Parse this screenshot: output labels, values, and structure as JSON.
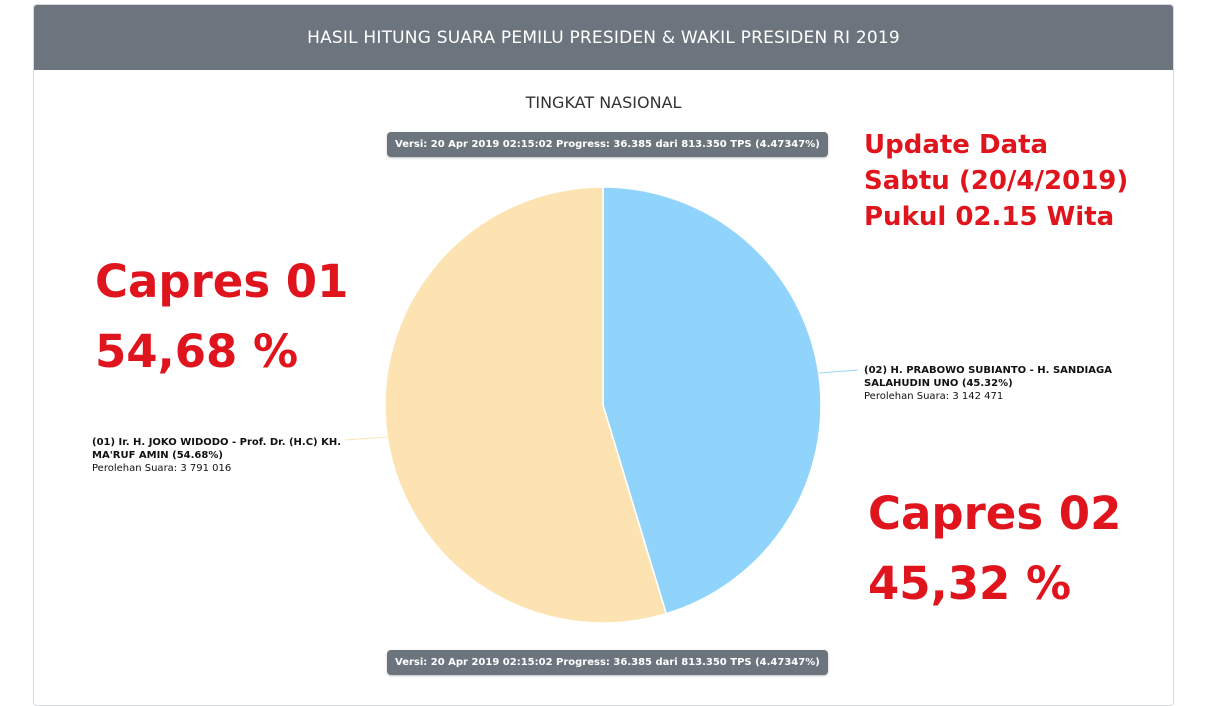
{
  "header": {
    "title": "HASIL HITUNG SUARA PEMILU PRESIDEN & WAKIL PRESIDEN RI 2019"
  },
  "subtitle": "TINGKAT NASIONAL",
  "version_pill": "Versi: 20 Apr 2019 02:15:02 Progress: 36.385 dari 813.350 TPS (4.47347%)",
  "overlay": {
    "update_lines": [
      "Update Data",
      "Sabtu (20/4/2019)",
      "Pukul 02.15 Wita"
    ],
    "capres01": {
      "name": "Capres 01",
      "pct": "54,68 %"
    },
    "capres02": {
      "name": "Capres 02",
      "pct": "45,32 %"
    }
  },
  "candidates": [
    {
      "label": "(01) Ir. H. JOKO WIDODO - Prof. Dr. (H.C) KH. MA'RUF AMIN (54.68%)",
      "votes_text": "Perolehan Suara: 3 791 016"
    },
    {
      "label": "(02) H. PRABOWO SUBIANTO - H. SANDIAGA SALAHUDIN UNO (45.32%)",
      "votes_text": "Perolehan Suara: 3 142 471"
    }
  ],
  "chart_data": {
    "type": "pie",
    "title": "TINGKAT NASIONAL",
    "slices": [
      {
        "name": "(01) Ir. H. JOKO WIDODO - Prof. Dr. (H.C) KH. MA'RUF AMIN",
        "percent": 54.68,
        "votes": 3791016,
        "color": "#fde3b2"
      },
      {
        "name": "(02) H. PRABOWO SUBIANTO - H. SANDIAGA SALAHUDIN UNO",
        "percent": 45.32,
        "votes": 3142471,
        "color": "#91d4fb"
      }
    ],
    "start_angle": "top, slice 02 clockwise"
  }
}
